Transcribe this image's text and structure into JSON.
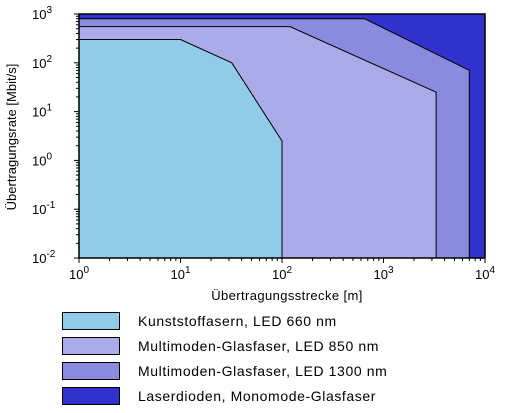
{
  "chart_data": {
    "type": "area",
    "xlabel": "Übertragungsstrecke [m]",
    "ylabel": "Übertragungsrate [Mbit/s]",
    "x_scale": "log",
    "y_scale": "log",
    "xlim": [
      1,
      10000
    ],
    "ylim": [
      0.01,
      1000
    ],
    "x_tick_labels": [
      {
        "base": "10",
        "exp": "0"
      },
      {
        "base": "10",
        "exp": "1"
      },
      {
        "base": "10",
        "exp": "2"
      },
      {
        "base": "10",
        "exp": "3"
      },
      {
        "base": "10",
        "exp": "4"
      }
    ],
    "y_tick_labels": [
      {
        "base": "10",
        "exp": "-2"
      },
      {
        "base": "10",
        "exp": "-1"
      },
      {
        "base": "10",
        "exp": "0"
      },
      {
        "base": "10",
        "exp": "1"
      },
      {
        "base": "10",
        "exp": "2"
      },
      {
        "base": "10",
        "exp": "3"
      }
    ],
    "grid": false,
    "legend_position": "bottom",
    "series": [
      {
        "name": "Laserdioden, Monomode-Glasfaser",
        "color": "#3131cc",
        "boundary": [
          [
            1,
            0.01
          ],
          [
            1,
            1000
          ],
          [
            10000,
            1000
          ],
          [
            10000,
            0.01
          ]
        ]
      },
      {
        "name": "Multimoden-Glasfaser, LED 1300 nm",
        "color": "#8a8adf",
        "boundary": [
          [
            1,
            0.01
          ],
          [
            1,
            800
          ],
          [
            650,
            800
          ],
          [
            7000,
            70
          ],
          [
            7000,
            0.01
          ]
        ]
      },
      {
        "name": "Multimoden-Glasfaser, LED 850 nm",
        "color": "#ababea",
        "boundary": [
          [
            1,
            0.01
          ],
          [
            1,
            550
          ],
          [
            120,
            550
          ],
          [
            3300,
            25
          ],
          [
            3300,
            0.01
          ]
        ]
      },
      {
        "name": "Kunststoffasern, LED 660 nm",
        "color": "#90cce8",
        "boundary": [
          [
            1,
            0.01
          ],
          [
            1,
            300
          ],
          [
            10,
            300
          ],
          [
            32,
            100
          ],
          [
            100,
            2.5
          ],
          [
            100,
            0.01
          ]
        ]
      }
    ]
  },
  "legend": [
    {
      "label": "Kunststoffasern, LED 660 nm",
      "color": "#90cce8"
    },
    {
      "label": "Multimoden-Glasfaser, LED 850 nm",
      "color": "#ababea"
    },
    {
      "label": "Multimoden-Glasfaser, LED 1300 nm",
      "color": "#8a8adf"
    },
    {
      "label": "Laserdioden, Monomode-Glasfaser",
      "color": "#3131cc"
    }
  ]
}
